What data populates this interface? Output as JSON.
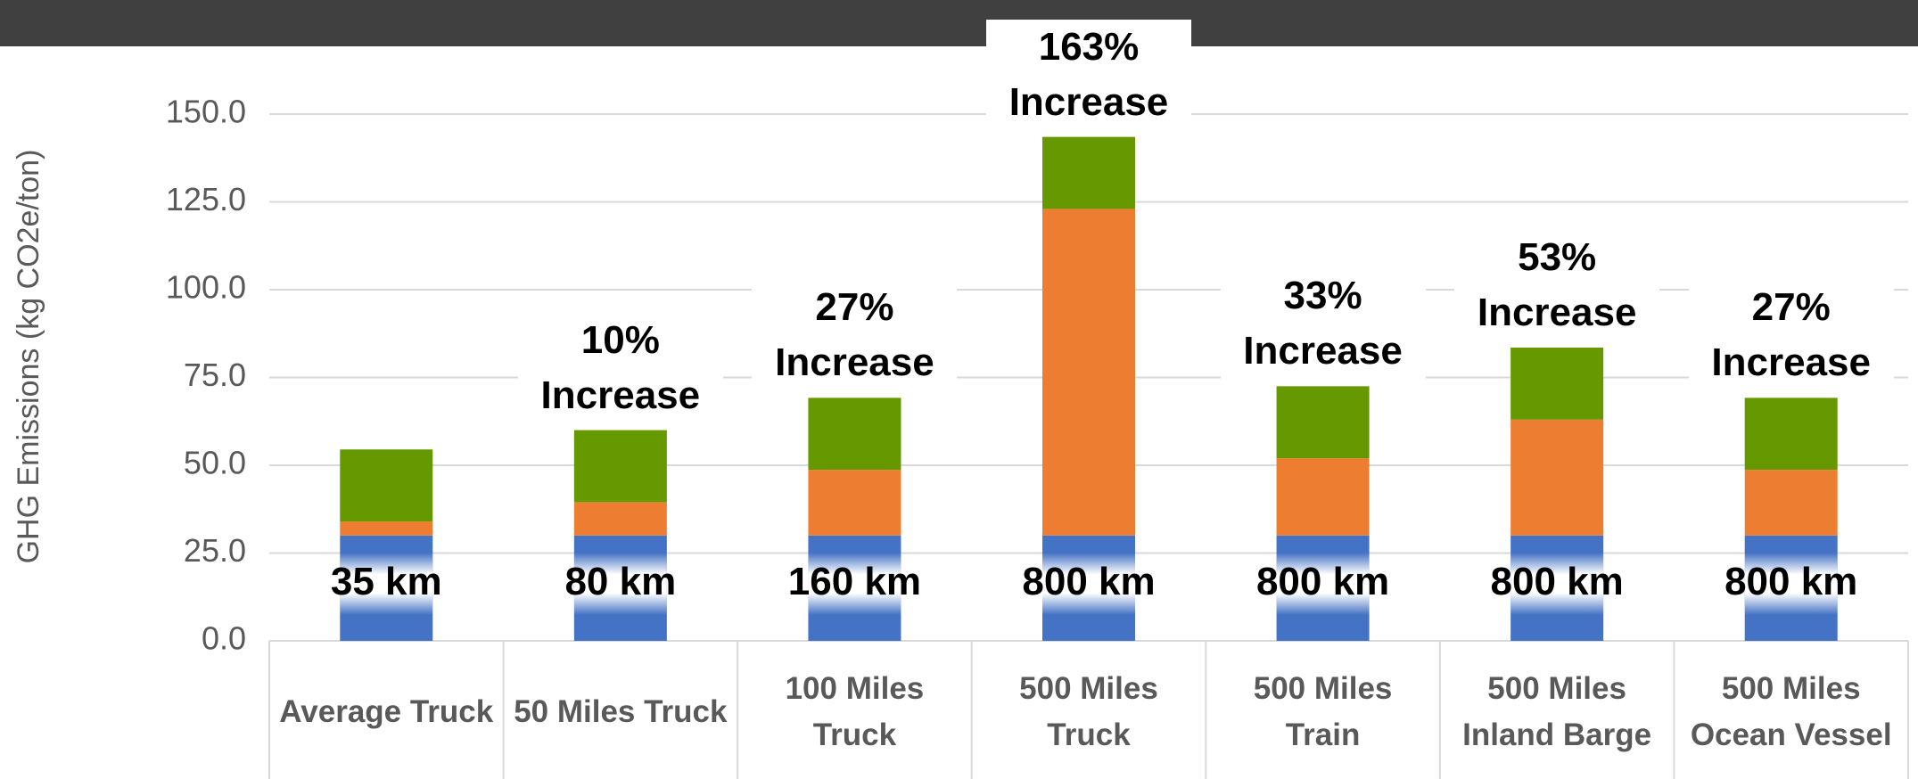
{
  "chart_data": {
    "type": "stacked_bar",
    "ylabel": "GHG Emissions (kg CO2e/ton)",
    "categories": [
      "Average Truck",
      "50 Miles Truck",
      "100 Miles Truck",
      "500 Miles Truck",
      "500 Miles Train",
      "500 Miles Inland Barge",
      "500 Miles Ocean Vessel"
    ],
    "series": [
      {
        "color": "#4472c4",
        "values": [
          30,
          30,
          30,
          30,
          30,
          30,
          30
        ]
      },
      {
        "color": "#ed7d31",
        "values": [
          4,
          9.5,
          18.7,
          93,
          22,
          33,
          18.7
        ]
      },
      {
        "color": "#669900",
        "values": [
          20.5,
          20.5,
          20.5,
          20.5,
          20.5,
          20.5,
          20.5
        ]
      }
    ],
    "annotations": [
      null,
      "10% Increase",
      "27% Increase",
      "163% Increase",
      "33% Increase",
      "53% Increase",
      "27% Increase"
    ],
    "distance_labels": [
      "35 km",
      "80 km",
      "160 km",
      "800 km",
      "800 km",
      "800 km",
      "800 km"
    ],
    "ylim": [
      0,
      150
    ],
    "yticks": [
      {
        "value": 0,
        "label": "0.0"
      },
      {
        "value": 25,
        "label": "25.0"
      },
      {
        "value": 50,
        "label": "50.0"
      },
      {
        "value": 75,
        "label": "75.0"
      },
      {
        "value": 100,
        "label": "100.0"
      },
      {
        "value": 125,
        "label": "125.0"
      },
      {
        "value": 150,
        "label": "150.0"
      }
    ],
    "grid": true
  }
}
